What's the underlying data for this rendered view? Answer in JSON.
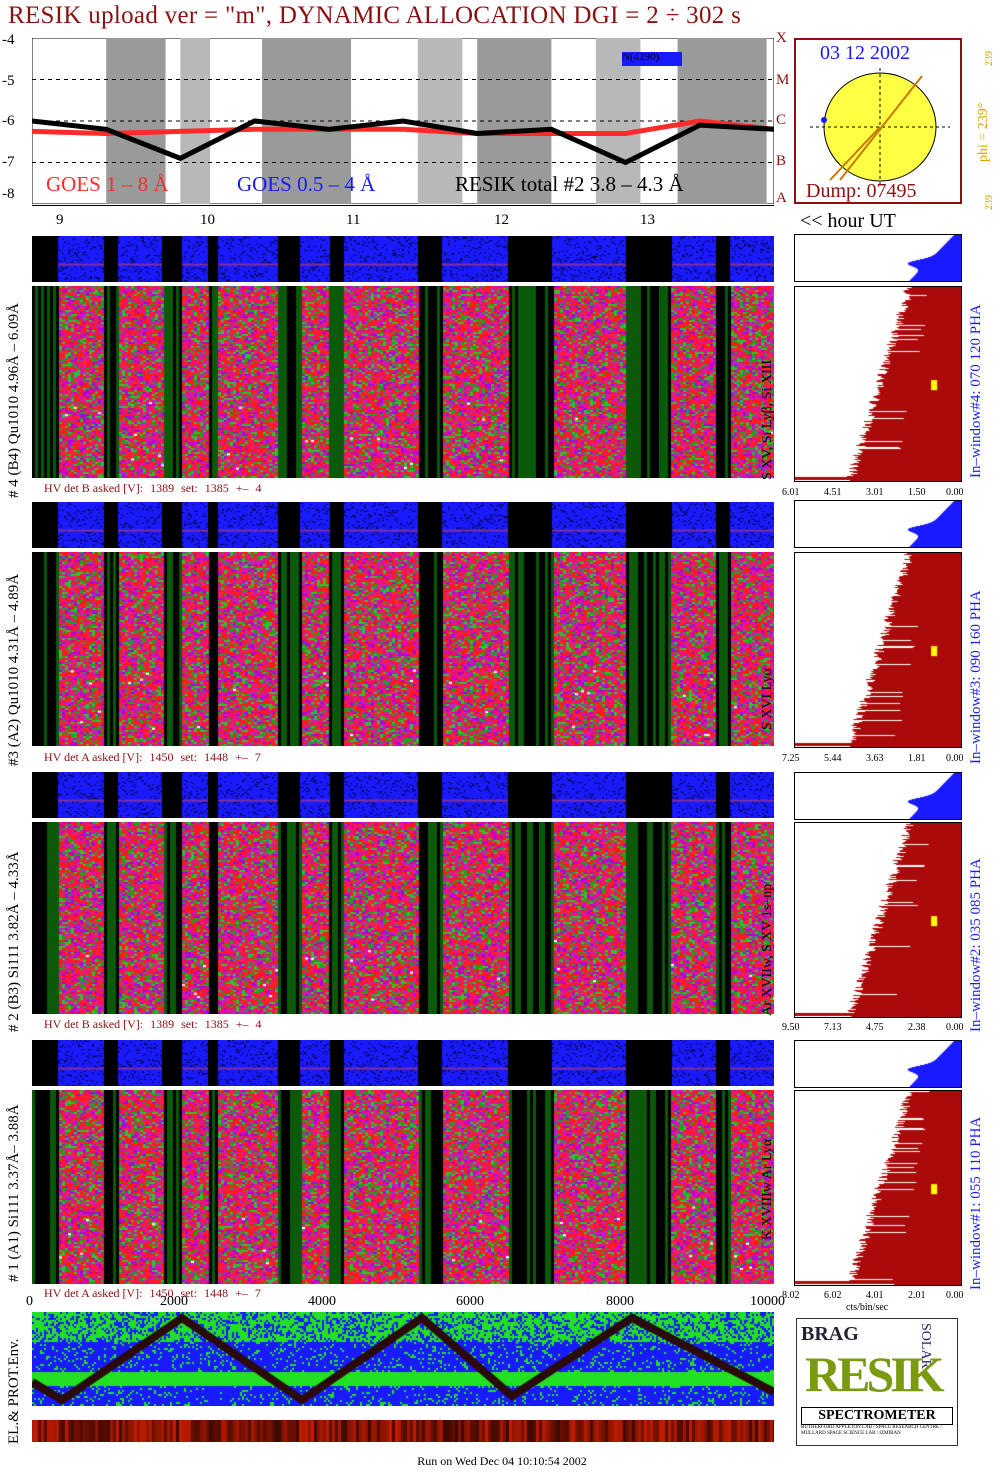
{
  "title": "RESIK upload ver = \"m\", DYNAMIC ALLOCATION  DGI =   2 ÷ 302 s",
  "goes": {
    "y_ticks": [
      "-4",
      "-5",
      "-6",
      "-7",
      "-8"
    ],
    "legend_goes18": "GOES 1 – 8 Å",
    "legend_goes054": "GOES 0.5 – 4 Å",
    "legend_resik": "RESIK total #2  3.8 – 4.3  Å",
    "class_letters": [
      "X",
      "M",
      "C",
      "B",
      "A"
    ],
    "annotation": "N(4290)",
    "colors": {
      "goes18": "#ff2a2a",
      "goes054": "#1a1aff",
      "resik": "#000000"
    },
    "shaded_intervals": [
      [
        0.1,
        0.18
      ],
      [
        0.2,
        0.24
      ],
      [
        0.31,
        0.43
      ],
      [
        0.52,
        0.58
      ],
      [
        0.6,
        0.7
      ],
      [
        0.76,
        0.82
      ],
      [
        0.87,
        0.99
      ]
    ]
  },
  "orbit": {
    "date": "03 12 2002",
    "phi_label": "phi = 239°",
    "phi_value": "239",
    "dump": "Dump: 07495"
  },
  "hours": {
    "labels": [
      "9",
      "10",
      "11",
      "12",
      "13"
    ],
    "unit_label": "<< hour UT"
  },
  "detectors": [
    {
      "ylabel": "# 4 (B4) Qu1010 4.96Å – 6.09Å",
      "line_label": "S XV, Si Lyβ, Si XIII",
      "window_label": "In–window#4:  070 120 PHA",
      "hv": {
        "label": "HV det B asked [V]:",
        "asked": "1389",
        "set_label": "set:",
        "set": "1385",
        "pm": "+–",
        "delta": "4"
      },
      "hist_ticks": [
        "6.01",
        "4.51",
        "3.01",
        "1.50",
        "0.00"
      ]
    },
    {
      "ylabel": "#3 (A2) Qu1010  4.31Å – 4.89Å",
      "line_label": "S XVI Lyα",
      "window_label": "In–window#3:  090 160 PHA",
      "hv": {
        "label": "HV det A asked [V]:",
        "asked": "1450",
        "set_label": "set:",
        "set": "1448",
        "pm": "+–",
        "delta": "7"
      },
      "hist_ticks": [
        "7.25",
        "5.44",
        "3.63",
        "1.81",
        "0.00"
      ]
    },
    {
      "ylabel": "# 2 (B3) Si111  3.82Å – 4.33Å",
      "line_label": "Ar XVIIw,  S XV  1s–np",
      "window_label": "In–window#2:  035 085 PHA",
      "hv": {
        "label": "HV det B asked [V]:",
        "asked": "1389",
        "set_label": "set:",
        "set": "1385",
        "pm": "+–",
        "delta": "4"
      },
      "hist_ticks": [
        "9.50",
        "7.13",
        "4.75",
        "2.38",
        "0.00"
      ]
    },
    {
      "ylabel": "# 1 (A1) Si111  3.37Å– 3.88Å",
      "line_label": "K XVIIIw  Ar Lyα",
      "window_label": "In–window#1:  055 110 PHA",
      "hv": {
        "label": "HV det A asked [V]:",
        "asked": "1450",
        "set_label": "set:",
        "set": "1448",
        "pm": "+–",
        "delta": "7"
      },
      "hist_ticks": [
        "8.02",
        "6.02",
        "4.01",
        "2.01",
        "0.00"
      ]
    }
  ],
  "hist_unit": "cts/bin/sec",
  "env": {
    "x_ticks": [
      "0",
      "2000",
      "4000",
      "6000",
      "8000",
      "10000"
    ],
    "ylabel": "EL.& PROT.Env."
  },
  "logo": {
    "line1": "RESIK",
    "corner_left": "BRAG",
    "corner_right": "SOLAR",
    "banner": "SPECTROMETER",
    "small_text": "RUTHERFORD APPLETON LAB / SPACE RESEARCH CENTRE / MULLARD SPACE SCIENCE LAB / IZMIRAN"
  },
  "footer": "Run on Wed Dec 04 10:10:54 2002",
  "chart_data": {
    "type": "line",
    "title": "RESIK upload ver = \"m\", DYNAMIC ALLOCATION  DGI =   2 ÷ 302 s",
    "xlabel": "",
    "ylabel": "",
    "x_unit_label": "<< hour UT",
    "x_ticks": [
      "9",
      "10",
      "11",
      "12",
      "13"
    ],
    "ylim": [
      -8,
      -4
    ],
    "series": [
      {
        "name": "GOES 1 – 8 Å",
        "x": [
          9.0,
          9.5,
          10.0,
          10.5,
          11.0,
          11.5,
          12.0,
          12.5,
          13.0,
          13.5,
          14.0
        ],
        "values": [
          -6.25,
          -6.3,
          -6.25,
          -6.2,
          -6.2,
          -6.2,
          -6.3,
          -6.3,
          -6.3,
          -6.0,
          -6.2
        ]
      },
      {
        "name": "RESIK total #2  3.8 – 4.3  Å",
        "x": [
          9.0,
          9.5,
          10.0,
          10.5,
          11.0,
          11.5,
          12.0,
          12.5,
          13.0,
          13.5,
          14.0
        ],
        "values": [
          -6.0,
          -6.2,
          -6.9,
          -6.0,
          -6.2,
          -6.0,
          -6.3,
          -6.2,
          -7.0,
          -6.1,
          -6.2
        ]
      }
    ]
  }
}
